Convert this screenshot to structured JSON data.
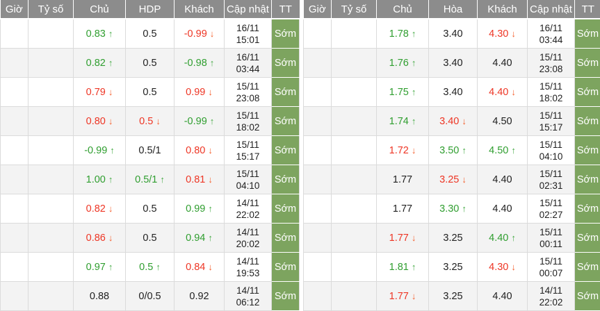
{
  "colors": {
    "header_bg": "#8c8c8c",
    "header_text": "#ffffff",
    "badge_bg": "#7da45f",
    "up_text": "#2f9e2f",
    "down_text": "#ee3524",
    "row_stripe": "#f3f3f3",
    "border": "#dbdbdb"
  },
  "icons": {
    "up_arrow": "↑",
    "down_arrow": "↓"
  },
  "tables": [
    {
      "id": "handicap",
      "headers": [
        "Giờ",
        "Tỷ số",
        "Chủ",
        "HDP",
        "Khách",
        "Cập nhật",
        "TT"
      ],
      "rows": [
        {
          "gio": "",
          "tyso": "",
          "home": "0.83",
          "home_trend": "up",
          "middle": "0.5",
          "middle_trend": "",
          "away": "-0.99",
          "away_trend": "down",
          "date": "16/11",
          "time": "15:01",
          "status": "Sớm"
        },
        {
          "gio": "",
          "tyso": "",
          "home": "0.82",
          "home_trend": "up",
          "middle": "0.5",
          "middle_trend": "",
          "away": "-0.98",
          "away_trend": "up",
          "date": "16/11",
          "time": "03:44",
          "status": "Sớm"
        },
        {
          "gio": "",
          "tyso": "",
          "home": "0.79",
          "home_trend": "down",
          "middle": "0.5",
          "middle_trend": "",
          "away": "0.99",
          "away_trend": "down",
          "date": "15/11",
          "time": "23:08",
          "status": "Sớm"
        },
        {
          "gio": "",
          "tyso": "",
          "home": "0.80",
          "home_trend": "down",
          "middle": "0.5",
          "middle_trend": "down",
          "away": "-0.99",
          "away_trend": "up",
          "date": "15/11",
          "time": "18:02",
          "status": "Sớm"
        },
        {
          "gio": "",
          "tyso": "",
          "home": "-0.99",
          "home_trend": "up",
          "middle": "0.5/1",
          "middle_trend": "",
          "away": "0.80",
          "away_trend": "down",
          "date": "15/11",
          "time": "15:17",
          "status": "Sớm"
        },
        {
          "gio": "",
          "tyso": "",
          "home": "1.00",
          "home_trend": "up",
          "middle": "0.5/1",
          "middle_trend": "up",
          "away": "0.81",
          "away_trend": "down",
          "date": "15/11",
          "time": "04:10",
          "status": "Sớm"
        },
        {
          "gio": "",
          "tyso": "",
          "home": "0.82",
          "home_trend": "down",
          "middle": "0.5",
          "middle_trend": "",
          "away": "0.99",
          "away_trend": "up",
          "date": "14/11",
          "time": "22:02",
          "status": "Sớm"
        },
        {
          "gio": "",
          "tyso": "",
          "home": "0.86",
          "home_trend": "down",
          "middle": "0.5",
          "middle_trend": "",
          "away": "0.94",
          "away_trend": "up",
          "date": "14/11",
          "time": "20:02",
          "status": "Sớm"
        },
        {
          "gio": "",
          "tyso": "",
          "home": "0.97",
          "home_trend": "up",
          "middle": "0.5",
          "middle_trend": "up",
          "away": "0.84",
          "away_trend": "down",
          "date": "14/11",
          "time": "19:53",
          "status": "Sớm"
        },
        {
          "gio": "",
          "tyso": "",
          "home": "0.88",
          "home_trend": "",
          "middle": "0/0.5",
          "middle_trend": "",
          "away": "0.92",
          "away_trend": "",
          "date": "14/11",
          "time": "06:12",
          "status": "Sớm"
        }
      ]
    },
    {
      "id": "1x2",
      "headers": [
        "Giờ",
        "Tỷ số",
        "Chủ",
        "Hòa",
        "Khách",
        "Cập nhật",
        "TT"
      ],
      "rows": [
        {
          "gio": "",
          "tyso": "",
          "home": "1.78",
          "home_trend": "up",
          "middle": "3.40",
          "middle_trend": "",
          "away": "4.30",
          "away_trend": "down",
          "date": "16/11",
          "time": "03:44",
          "status": "Sớm"
        },
        {
          "gio": "",
          "tyso": "",
          "home": "1.76",
          "home_trend": "up",
          "middle": "3.40",
          "middle_trend": "",
          "away": "4.40",
          "away_trend": "",
          "date": "15/11",
          "time": "23:08",
          "status": "Sớm"
        },
        {
          "gio": "",
          "tyso": "",
          "home": "1.75",
          "home_trend": "up",
          "middle": "3.40",
          "middle_trend": "",
          "away": "4.40",
          "away_trend": "down",
          "date": "15/11",
          "time": "18:02",
          "status": "Sớm"
        },
        {
          "gio": "",
          "tyso": "",
          "home": "1.74",
          "home_trend": "up",
          "middle": "3.40",
          "middle_trend": "down",
          "away": "4.50",
          "away_trend": "",
          "date": "15/11",
          "time": "15:17",
          "status": "Sớm"
        },
        {
          "gio": "",
          "tyso": "",
          "home": "1.72",
          "home_trend": "down",
          "middle": "3.50",
          "middle_trend": "up",
          "away": "4.50",
          "away_trend": "up",
          "date": "15/11",
          "time": "04:10",
          "status": "Sớm"
        },
        {
          "gio": "",
          "tyso": "",
          "home": "1.77",
          "home_trend": "",
          "middle": "3.25",
          "middle_trend": "down",
          "away": "4.40",
          "away_trend": "",
          "date": "15/11",
          "time": "02:31",
          "status": "Sớm"
        },
        {
          "gio": "",
          "tyso": "",
          "home": "1.77",
          "home_trend": "",
          "middle": "3.30",
          "middle_trend": "up",
          "away": "4.40",
          "away_trend": "",
          "date": "15/11",
          "time": "02:27",
          "status": "Sớm"
        },
        {
          "gio": "",
          "tyso": "",
          "home": "1.77",
          "home_trend": "down",
          "middle": "3.25",
          "middle_trend": "",
          "away": "4.40",
          "away_trend": "up",
          "date": "15/11",
          "time": "00:11",
          "status": "Sớm"
        },
        {
          "gio": "",
          "tyso": "",
          "home": "1.81",
          "home_trend": "up",
          "middle": "3.25",
          "middle_trend": "",
          "away": "4.30",
          "away_trend": "down",
          "date": "15/11",
          "time": "00:07",
          "status": "Sớm"
        },
        {
          "gio": "",
          "tyso": "",
          "home": "1.77",
          "home_trend": "down",
          "middle": "3.25",
          "middle_trend": "",
          "away": "4.40",
          "away_trend": "",
          "date": "14/11",
          "time": "22:02",
          "status": "Sớm"
        }
      ]
    }
  ]
}
